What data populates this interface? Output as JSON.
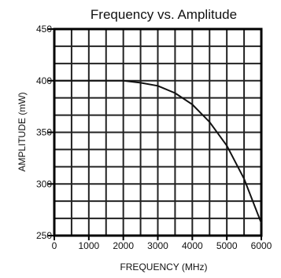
{
  "chart_data": {
    "type": "line",
    "title": "Frequency vs. Amplitude",
    "xlabel": "FREQUENCY (MHz)",
    "ylabel": "AMPLITUDE (mW)",
    "xlim": [
      0,
      6000
    ],
    "ylim": [
      250,
      450
    ],
    "x_ticks": [
      "0",
      "1000",
      "2000",
      "3000",
      "4000",
      "5000",
      "6000"
    ],
    "y_ticks": [
      "450",
      "400",
      "350",
      "300",
      "250"
    ],
    "grid": true,
    "series": [
      {
        "color": "#111111",
        "x": [
          0,
          1000,
          2000,
          2500,
          3000,
          3500,
          4000,
          4500,
          5000,
          5500,
          6000
        ],
        "y": [
          400,
          400,
          400,
          398,
          395,
          388,
          377,
          360,
          337,
          305,
          262
        ]
      }
    ]
  }
}
